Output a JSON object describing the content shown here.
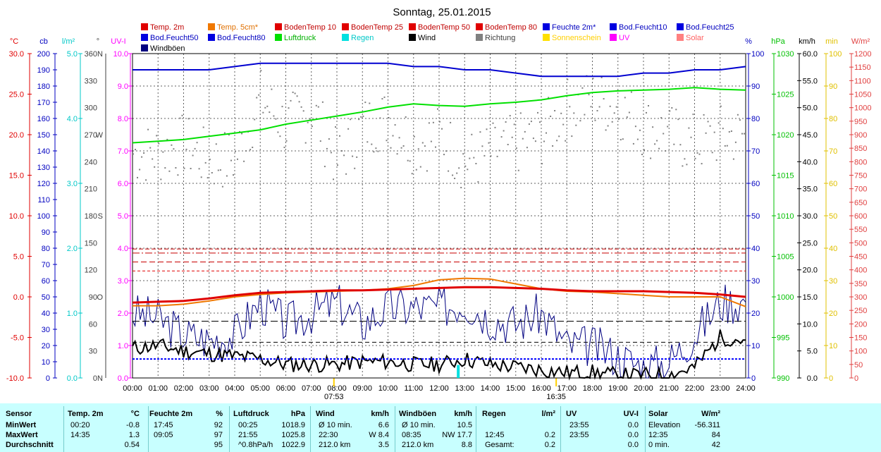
{
  "title": "Sonntag, 25.01.2015",
  "colors": {
    "temp2m": "#e00000",
    "temp5cm": "#f07800",
    "boden10": "#e00000",
    "boden25": "#c80000",
    "boden50": "#c80000",
    "boden80": "#c80000",
    "feuchte2m": "#0000d0",
    "bodfeucht": "#0000ff",
    "luftdruck": "#00e000",
    "regen": "#00e0e0",
    "wind": "#000000",
    "richtung": "#808080",
    "sonne": "#ffe000",
    "uv": "#ff00ff",
    "solar": "#ff6060",
    "windboeen": "#000080",
    "grid": "#404040"
  },
  "legend": [
    {
      "label": "Temp. 2m",
      "color": "#e00000"
    },
    {
      "label": "Temp. 5cm*",
      "color": "#f07800"
    },
    {
      "label": "BodenTemp 10",
      "color": "#e00000"
    },
    {
      "label": "BodenTemp 25",
      "color": "#e00000"
    },
    {
      "label": "BodenTemp 50",
      "color": "#e00000"
    },
    {
      "label": "BodenTemp 80",
      "color": "#e00000"
    },
    {
      "label": "Feuchte 2m*",
      "color": "#0000e0"
    },
    {
      "label": "Bod.Feucht10",
      "color": "#0000e0"
    },
    {
      "label": "Bod.Feucht25",
      "color": "#0000e0"
    },
    {
      "label": "Bod.Feucht50",
      "color": "#0000e0"
    },
    {
      "label": "Bod.Feucht80",
      "color": "#0000e0"
    },
    {
      "label": "Luftdruck",
      "color": "#00e000"
    },
    {
      "label": "Regen",
      "color": "#00e0e0"
    },
    {
      "label": "Wind",
      "color": "#000000"
    },
    {
      "label": "Richtung",
      "color": "#808080"
    },
    {
      "label": "Sonnenschein",
      "color": "#ffe000"
    },
    {
      "label": "UV",
      "color": "#ff00ff"
    },
    {
      "label": "Solar",
      "color": "#ff8080"
    },
    {
      "label": "Windböen",
      "color": "#000080"
    }
  ],
  "axes": {
    "temp": {
      "title": "°C",
      "color": "#e00000",
      "ticks": [
        "30.0",
        "25.0",
        "20.0",
        "15.0",
        "10.0",
        "5.0",
        "0.0",
        "-5.0",
        "-10.0"
      ]
    },
    "cb": {
      "title": "cb",
      "color": "#0000c0",
      "ticks": [
        "200",
        "190",
        "180",
        "170",
        "160",
        "150",
        "140",
        "130",
        "120",
        "110",
        "100",
        "90",
        "80",
        "70",
        "60",
        "50",
        "40",
        "30",
        "20",
        "10",
        "0"
      ]
    },
    "rain": {
      "title": "l/m²",
      "color": "#00c8c8",
      "ticks": [
        "5.0",
        "4.0",
        "3.0",
        "2.0",
        "1.0",
        "0.0"
      ]
    },
    "dir": {
      "title": "°",
      "color": "#404040",
      "ticks": [
        "360",
        "330",
        "300",
        "270",
        "240",
        "210",
        "180",
        "150",
        "120",
        "90",
        "60",
        "30",
        "0"
      ],
      "compass": [
        "N",
        "W",
        "S",
        "O",
        "N"
      ]
    },
    "uvi": {
      "title": "UV-I",
      "color": "#ff00ff",
      "ticks": [
        "10.0",
        "9.0",
        "8.0",
        "7.0",
        "6.0",
        "5.0",
        "4.0",
        "3.0",
        "2.0",
        "1.0",
        "0.0"
      ]
    },
    "hum": {
      "title": "%",
      "color": "#0000c0",
      "ticks": [
        "100",
        "90",
        "80",
        "70",
        "60",
        "50",
        "40",
        "30",
        "20",
        "10",
        "0"
      ]
    },
    "hpa": {
      "title": "hPa",
      "color": "#00c000",
      "ticks": [
        "1030",
        "1025",
        "1020",
        "1015",
        "1010",
        "1005",
        "1000",
        "995",
        "990"
      ]
    },
    "kmh": {
      "title": "km/h",
      "color": "#000000",
      "ticks": [
        "60.0",
        "55.0",
        "50.0",
        "45.0",
        "40.0",
        "35.0",
        "30.0",
        "25.0",
        "20.0",
        "15.0",
        "10.0",
        "5.0",
        "0.0"
      ]
    },
    "min": {
      "title": "min",
      "color": "#e0c000",
      "ticks": [
        "100",
        "90",
        "80",
        "70",
        "60",
        "50",
        "40",
        "30",
        "20",
        "10",
        "0"
      ]
    },
    "wm2": {
      "title": "W/m²",
      "color": "#e04040",
      "ticks": [
        "1200",
        "1150",
        "1100",
        "1050",
        "1000",
        "950",
        "900",
        "850",
        "800",
        "750",
        "700",
        "650",
        "600",
        "550",
        "500",
        "450",
        "400",
        "350",
        "300",
        "250",
        "200",
        "150",
        "100",
        "50",
        "0"
      ]
    }
  },
  "sun_events": {
    "sunrise": "07:53",
    "sunset": "16:35"
  },
  "chart_data": {
    "type": "line",
    "x": [
      "00:00",
      "01:00",
      "02:00",
      "03:00",
      "04:00",
      "05:00",
      "06:00",
      "07:00",
      "08:00",
      "09:00",
      "10:00",
      "11:00",
      "12:00",
      "13:00",
      "14:00",
      "15:00",
      "16:00",
      "17:00",
      "18:00",
      "19:00",
      "20:00",
      "21:00",
      "22:00",
      "23:00",
      "24:00"
    ],
    "series": [
      {
        "name": "Temp. 2m",
        "unit": "°C",
        "values": [
          -0.7,
          -0.6,
          -0.5,
          -0.2,
          0.2,
          0.5,
          0.6,
          0.7,
          0.8,
          0.8,
          0.9,
          1.0,
          1.1,
          1.2,
          1.2,
          1.1,
          1.0,
          0.8,
          0.7,
          0.7,
          0.7,
          0.6,
          0.5,
          0.3,
          0.0
        ]
      },
      {
        "name": "Temp. 5cm*",
        "unit": "°C",
        "values": [
          -1.1,
          -1.1,
          -0.9,
          -0.5,
          0.0,
          0.3,
          0.5,
          0.6,
          0.7,
          0.8,
          1.0,
          1.4,
          2.1,
          2.3,
          2.2,
          1.6,
          1.0,
          0.7,
          0.6,
          0.4,
          0.2,
          0.0,
          0.0,
          0.0,
          -1.2
        ]
      },
      {
        "name": "BodenTemp 10",
        "unit": "°C",
        "values": [
          3.2,
          3.2,
          3.2,
          3.2,
          3.2,
          3.2,
          3.2,
          3.2,
          3.2,
          3.2,
          3.2,
          3.2,
          3.2,
          3.2,
          3.2,
          3.2,
          3.2,
          3.2,
          3.2,
          3.2,
          3.2,
          3.2,
          3.2,
          3.2,
          3.2
        ]
      },
      {
        "name": "BodenTemp 25",
        "unit": "°C",
        "values": [
          4.3,
          4.3,
          4.3,
          4.3,
          4.3,
          4.3,
          4.3,
          4.3,
          4.3,
          4.3,
          4.3,
          4.3,
          4.3,
          4.3,
          4.3,
          4.3,
          4.3,
          4.3,
          4.3,
          4.3,
          4.3,
          4.3,
          4.3,
          4.3,
          4.3
        ]
      },
      {
        "name": "BodenTemp 50",
        "unit": "°C",
        "values": [
          5.4,
          5.4,
          5.4,
          5.4,
          5.4,
          5.4,
          5.4,
          5.4,
          5.4,
          5.4,
          5.4,
          5.4,
          5.4,
          5.4,
          5.4,
          5.4,
          5.4,
          5.4,
          5.4,
          5.4,
          5.4,
          5.4,
          5.4,
          5.4,
          5.4
        ]
      },
      {
        "name": "BodenTemp 80",
        "unit": "°C",
        "values": [
          5.9,
          5.9,
          5.9,
          5.9,
          5.9,
          5.9,
          5.9,
          5.9,
          5.9,
          5.9,
          5.9,
          5.9,
          5.9,
          5.9,
          5.9,
          5.9,
          5.9,
          5.9,
          5.9,
          5.9,
          5.9,
          5.9,
          5.9,
          5.9,
          5.9
        ]
      },
      {
        "name": "Feuchte 2m*",
        "unit": "%",
        "values": [
          95,
          95,
          95,
          95,
          96,
          97,
          97,
          97,
          97,
          97,
          97,
          96,
          96,
          95,
          95,
          94,
          93,
          93,
          93,
          93,
          94,
          94,
          95,
          95,
          96
        ]
      },
      {
        "name": "Luftdruck",
        "unit": "hPa",
        "values": [
          1019.0,
          1019.2,
          1019.4,
          1019.8,
          1020.2,
          1020.6,
          1021.3,
          1021.8,
          1022.3,
          1022.8,
          1023.4,
          1023.8,
          1023.6,
          1023.5,
          1023.8,
          1024.0,
          1024.3,
          1024.8,
          1025.2,
          1025.4,
          1025.5,
          1025.6,
          1025.8,
          1025.6,
          1025.5
        ]
      },
      {
        "name": "Wind",
        "unit": "km/h",
        "values": [
          5.5,
          6.0,
          5.0,
          4.5,
          4.0,
          3.5,
          2.5,
          2.5,
          2.5,
          3.0,
          3.0,
          2.5,
          2.5,
          3.5,
          2.5,
          2.0,
          1.5,
          1.0,
          1.0,
          0.5,
          0.5,
          0.5,
          2.0,
          7.5,
          7.0
        ]
      },
      {
        "name": "Windböen",
        "unit": "km/h",
        "values": [
          12,
          11,
          8,
          7,
          8,
          14,
          10,
          12,
          14,
          10,
          13,
          13,
          13,
          14,
          11,
          10,
          12,
          6,
          6,
          4,
          2,
          3,
          8,
          14,
          14
        ]
      },
      {
        "name": "Regen",
        "unit": "l/m²",
        "values": [
          0,
          0,
          0,
          0,
          0,
          0,
          0,
          0,
          0,
          0,
          0,
          0,
          0,
          0.2,
          0,
          0,
          0,
          0,
          0,
          0,
          0,
          0,
          0,
          0,
          0
        ]
      },
      {
        "name": "Richtung",
        "unit": "°",
        "values": [
          250,
          250,
          260,
          240,
          245,
          310,
          280,
          300,
          240,
          280,
          290,
          260,
          270,
          240,
          250,
          260,
          270,
          300,
          310,
          300,
          280,
          270,
          260,
          270,
          270
        ]
      }
    ],
    "ylabel_left": "°C",
    "ylim_temp": [
      -10,
      30
    ],
    "ylim_hum": [
      0,
      100
    ],
    "ylim_hpa": [
      990,
      1030
    ],
    "ylim_kmh": [
      0,
      60
    ],
    "grid": true
  },
  "stats": {
    "headers": {
      "sensor": "Sensor",
      "temp": "Temp. 2m",
      "temp_u": "°C",
      "hum": "Feuchte 2m",
      "hum_u": "%",
      "press": "Luftdruck",
      "press_u": "hPa",
      "wind": "Wind",
      "wind_u": "km/h",
      "gust": "Windböen",
      "gust_u": "km/h",
      "rain": "Regen",
      "rain_u": "l/m²",
      "uv": "UV",
      "uv_u": "UV-I",
      "solar": "Solar",
      "solar_u": "W/m²"
    },
    "rows": [
      {
        "label": "MinWert",
        "temp_t": "00:20",
        "temp_v": "-0.8",
        "hum_t": "17:45",
        "hum_v": "92",
        "press_t": "00:25",
        "press_v": "1018.9",
        "wind_t": "Ø 10 min.",
        "wind_v": "6.6",
        "gust_t": "Ø 10 min.",
        "gust_v": "10.5",
        "rain_t": "",
        "rain_v": "",
        "uv_t": "23:55",
        "uv_v": "0.0",
        "solar_t": "Elevation",
        "solar_v": "-56.311"
      },
      {
        "label": "MaxWert",
        "temp_t": "14:35",
        "temp_v": "1.3",
        "hum_t": "09:05",
        "hum_v": "97",
        "press_t": "21:55",
        "press_v": "1025.8",
        "wind_t": "22:30",
        "wind_v": "W 8.4",
        "gust_t": "08:35",
        "gust_v": "NW 17.7",
        "rain_t": "12:45",
        "rain_v": "0.2",
        "uv_t": "23:55",
        "uv_v": "0.0",
        "solar_t": "12:35",
        "solar_v": "84"
      },
      {
        "label": "Durchschnitt",
        "temp_t": "",
        "temp_v": "0.54",
        "hum_t": "",
        "hum_v": "95",
        "press_t": "^0.8hPa/h",
        "press_v": "1022.9",
        "wind_t": "212.0 km",
        "wind_v": "3.5",
        "gust_t": "212.0 km",
        "gust_v": "8.8",
        "rain_t": "Gesamt:",
        "rain_v": "0.2",
        "uv_t": "",
        "uv_v": "0.0",
        "solar_t": "0 min.",
        "solar_v": "42"
      }
    ]
  }
}
